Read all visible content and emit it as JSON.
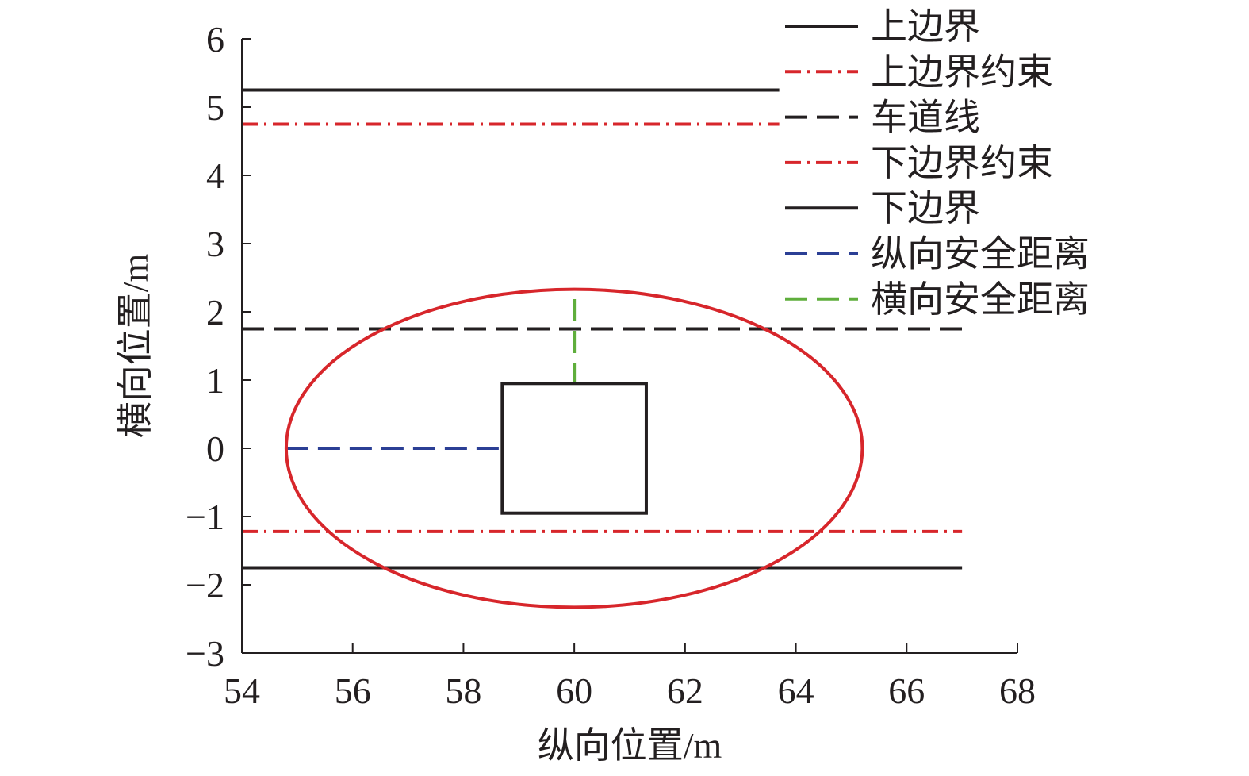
{
  "chart_data": {
    "type": "line",
    "xlabel": "纵向位置/m",
    "ylabel": "横向位置/m",
    "xlim": [
      54,
      68
    ],
    "ylim": [
      -3,
      6
    ],
    "xticks": [
      54,
      56,
      58,
      60,
      62,
      64,
      66,
      68
    ],
    "yticks": [
      -3,
      -2,
      -1,
      0,
      1,
      2,
      3,
      4,
      5,
      6
    ],
    "grid": false,
    "legend_position": "top-right",
    "series": [
      {
        "name": "上边界",
        "color": "#231f20",
        "dash": "solid",
        "x": [
          54,
          63.7
        ],
        "y": [
          5.25,
          5.25
        ]
      },
      {
        "name": "上边界约束",
        "color": "#d7262b",
        "dash": "dashdot",
        "x": [
          54,
          63.7
        ],
        "y": [
          4.75,
          4.75
        ]
      },
      {
        "name": "车道线",
        "color": "#231f20",
        "dash": "dashed",
        "x": [
          54,
          67
        ],
        "y": [
          1.75,
          1.75
        ]
      },
      {
        "name": "下边界约束",
        "color": "#d7262b",
        "dash": "dashdot",
        "x": [
          54,
          67
        ],
        "y": [
          -1.22,
          -1.22
        ]
      },
      {
        "name": "下边界",
        "color": "#231f20",
        "dash": "solid",
        "x": [
          54,
          67
        ],
        "y": [
          -1.75,
          -1.75
        ]
      },
      {
        "name": "纵向安全距离",
        "color": "#2b3f95",
        "dash": "dashed",
        "x": [
          54.8,
          58.7
        ],
        "y": [
          0,
          0
        ]
      },
      {
        "name": "横向安全距离",
        "color": "#5fae3c",
        "dash": "dashed",
        "x": [
          60,
          60
        ],
        "y": [
          0.93,
          2.33
        ]
      }
    ],
    "vehicle_box": {
      "x": [
        58.7,
        61.3
      ],
      "y": [
        -0.95,
        0.95
      ],
      "color": "#231f20"
    },
    "safety_ellipse": {
      "center": [
        60,
        0
      ],
      "semi_x": 5.2,
      "semi_y": 2.33,
      "color": "#d7262b"
    }
  }
}
